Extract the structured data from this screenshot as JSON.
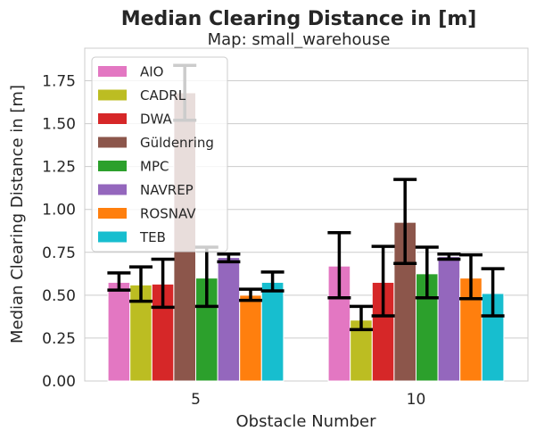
{
  "chart_data": {
    "type": "bar",
    "title": "Median Clearing Distance in [m]",
    "subtitle": "Map: small_warehouse",
    "xlabel": "Obstacle Number",
    "ylabel": "Median Clearing Distance in [m]",
    "categories": [
      "5",
      "10"
    ],
    "ylim": [
      0,
      1.94
    ],
    "yticks": [
      "0.00",
      "0.25",
      "0.50",
      "0.75",
      "1.00",
      "1.25",
      "1.50",
      "1.75"
    ],
    "grid": "horizontal",
    "legend_position": "top-left",
    "series": [
      {
        "name": "AIO",
        "color": "#e377c2",
        "values": [
          0.575,
          0.67
        ],
        "err_low": [
          0.53,
          0.485
        ],
        "err_high": [
          0.63,
          0.865
        ]
      },
      {
        "name": "CADRL",
        "color": "#bcbd22",
        "values": [
          0.56,
          0.355
        ],
        "err_low": [
          0.465,
          0.3
        ],
        "err_high": [
          0.665,
          0.435
        ]
      },
      {
        "name": "DWA",
        "color": "#d62728",
        "values": [
          0.565,
          0.575
        ],
        "err_low": [
          0.43,
          0.38
        ],
        "err_high": [
          0.71,
          0.785
        ]
      },
      {
        "name": "Güldenring",
        "color": "#8c564b",
        "values": [
          1.68,
          0.925
        ],
        "err_low": [
          1.52,
          0.685
        ],
        "err_high": [
          1.84,
          1.175
        ]
      },
      {
        "name": "MPC",
        "color": "#2ca02c",
        "values": [
          0.6,
          0.625
        ],
        "err_low": [
          0.435,
          0.485
        ],
        "err_high": [
          0.78,
          0.78
        ]
      },
      {
        "name": "NAVREP",
        "color": "#9467bd",
        "values": [
          0.72,
          0.725
        ],
        "err_low": [
          0.695,
          0.71
        ],
        "err_high": [
          0.74,
          0.74
        ]
      },
      {
        "name": "ROSNAV",
        "color": "#ff7f0e",
        "values": [
          0.5,
          0.6
        ],
        "err_low": [
          0.47,
          0.48
        ],
        "err_high": [
          0.535,
          0.735
        ]
      },
      {
        "name": "TEB",
        "color": "#17becf",
        "values": [
          0.575,
          0.51
        ],
        "err_low": [
          0.525,
          0.38
        ],
        "err_high": [
          0.635,
          0.655
        ]
      }
    ]
  }
}
